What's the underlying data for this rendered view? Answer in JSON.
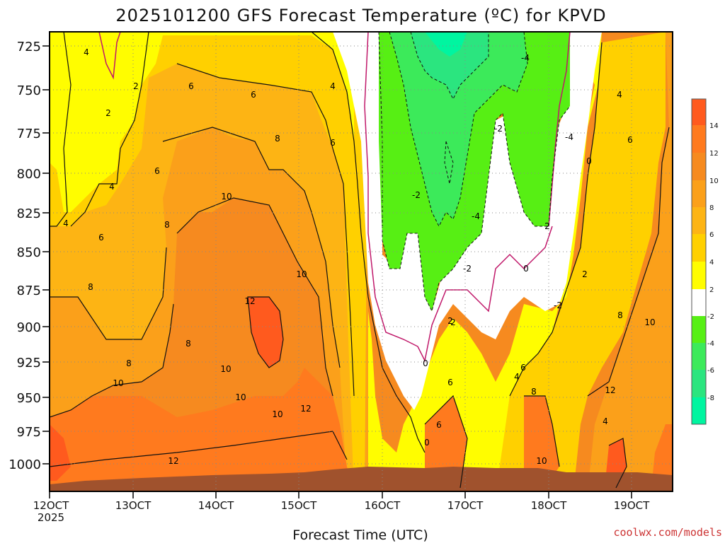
{
  "chart_data": {
    "type": "heatmap",
    "title": "2025101200 GFS Forecast Temperature (ºC) for KPVD",
    "xlabel": "Forecast Time (UTC)",
    "ylabel": "",
    "credit": "coolwx.com/models",
    "x_ticks": [
      "12OCT",
      "13OCT",
      "14OCT",
      "15OCT",
      "16OCT",
      "17OCT",
      "18OCT",
      "19OCT"
    ],
    "x_year": "2025",
    "y_ticks": [
      "725",
      "750",
      "775",
      "800",
      "825",
      "850",
      "875",
      "900",
      "925",
      "950",
      "975",
      "1000"
    ],
    "y_range": [
      1020,
      710
    ],
    "x_range_days": [
      12.0,
      19.5
    ],
    "colorbar": {
      "ticks": [
        "14",
        "12",
        "10",
        "8",
        "6",
        "4",
        "2",
        "-2",
        "-4",
        "-6",
        "-8"
      ],
      "bands": [
        {
          "lo": 14,
          "hi": 16,
          "color": "#ff5a1e"
        },
        {
          "lo": 12,
          "hi": 14,
          "color": "#ff7a1e"
        },
        {
          "lo": 10,
          "hi": 12,
          "color": "#f68a1f"
        },
        {
          "lo": 8,
          "hi": 10,
          "color": "#fba01a"
        },
        {
          "lo": 6,
          "hi": 8,
          "color": "#fdb414"
        },
        {
          "lo": 4,
          "hi": 6,
          "color": "#ffd000"
        },
        {
          "lo": 2,
          "hi": 4,
          "color": "#fffd00"
        },
        {
          "lo": -2,
          "hi": 2,
          "color": "#ffffff"
        },
        {
          "lo": -4,
          "hi": -2,
          "color": "#57ef14"
        },
        {
          "lo": -6,
          "hi": -4,
          "color": "#3cea5a"
        },
        {
          "lo": -8,
          "hi": -6,
          "color": "#2be57f"
        },
        {
          "lo": -10,
          "hi": -8,
          "color": "#00f5a0"
        }
      ]
    },
    "contour_labels": [
      "4",
      "2",
      "6",
      "6",
      "4",
      "2",
      "4",
      "6",
      "8",
      "6",
      "6",
      "4",
      "8",
      "10",
      "8",
      "10",
      "12",
      "8",
      "8",
      "10",
      "10",
      "10",
      "12",
      "12",
      "10",
      "-2",
      "-4",
      "-2",
      "-4",
      "-2",
      "0",
      "0",
      "2",
      "6",
      "6",
      "4",
      "8",
      "10",
      "-4",
      "0",
      "2",
      "-2",
      "2",
      "4",
      "6",
      "8",
      "10",
      "12",
      "4",
      "6",
      "0",
      "2"
    ]
  }
}
